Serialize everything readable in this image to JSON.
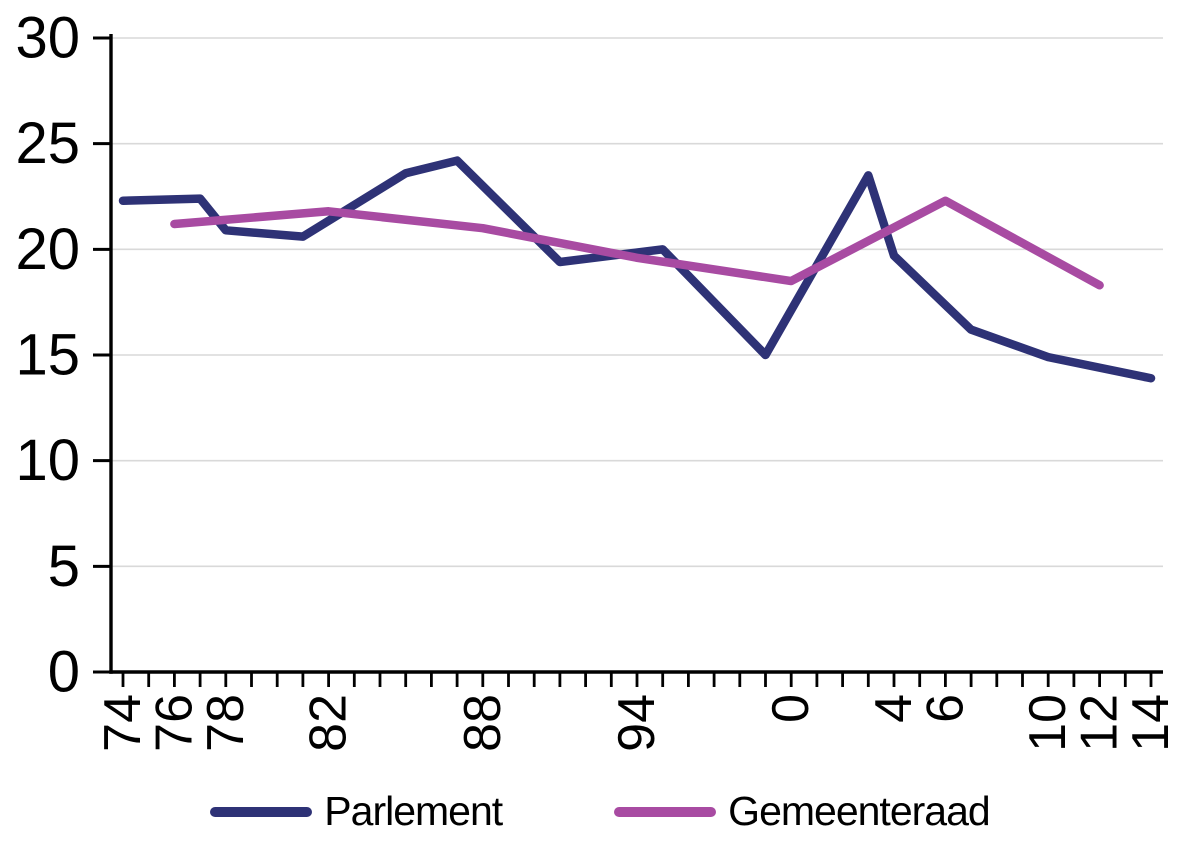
{
  "chart_data": {
    "type": "line",
    "title": "",
    "xlabel": "",
    "ylabel": "",
    "grid": "horizontal",
    "grid_color": "#d9d9d9",
    "axis_color": "#000000",
    "legend_position": "bottom",
    "x_axis": {
      "unit": "year",
      "tick_start": 1974,
      "tick_end": 2014,
      "tick_interval": 1,
      "labeled_ticks": [
        {
          "year": 1974,
          "label": "74"
        },
        {
          "year": 1976,
          "label": "76"
        },
        {
          "year": 1978,
          "label": "78"
        },
        {
          "year": 1982,
          "label": "82"
        },
        {
          "year": 1988,
          "label": "88"
        },
        {
          "year": 1994,
          "label": "94"
        },
        {
          "year": 2000,
          "label": "0"
        },
        {
          "year": 2004,
          "label": "4"
        },
        {
          "year": 2006,
          "label": "6"
        },
        {
          "year": 2010,
          "label": "10"
        },
        {
          "year": 2012,
          "label": "12"
        },
        {
          "year": 2014,
          "label": "14"
        }
      ]
    },
    "y_axis": {
      "min": 0,
      "max": 30,
      "tick_step": 5,
      "tick_labels": [
        "0",
        "5",
        "10",
        "15",
        "20",
        "25",
        "30"
      ]
    },
    "series": [
      {
        "name": "Parlement",
        "color": "#2e3276",
        "points": [
          {
            "x": 1974,
            "y": 22.3
          },
          {
            "x": 1977,
            "y": 22.4
          },
          {
            "x": 1978,
            "y": 20.9
          },
          {
            "x": 1981,
            "y": 20.6
          },
          {
            "x": 1985,
            "y": 23.6
          },
          {
            "x": 1987,
            "y": 24.2
          },
          {
            "x": 1991,
            "y": 19.4
          },
          {
            "x": 1995,
            "y": 20.0
          },
          {
            "x": 1999,
            "y": 15.0
          },
          {
            "x": 2003,
            "y": 23.5
          },
          {
            "x": 2004,
            "y": 19.7
          },
          {
            "x": 2007,
            "y": 16.2
          },
          {
            "x": 2010,
            "y": 14.9
          },
          {
            "x": 2014,
            "y": 13.9
          }
        ]
      },
      {
        "name": "Gemeenteraad",
        "color": "#a84ba2",
        "points": [
          {
            "x": 1976,
            "y": 21.2
          },
          {
            "x": 1982,
            "y": 21.8
          },
          {
            "x": 1988,
            "y": 21.0
          },
          {
            "x": 1994,
            "y": 19.6
          },
          {
            "x": 2000,
            "y": 18.5
          },
          {
            "x": 2006,
            "y": 22.3
          },
          {
            "x": 2012,
            "y": 18.3
          }
        ]
      }
    ]
  }
}
